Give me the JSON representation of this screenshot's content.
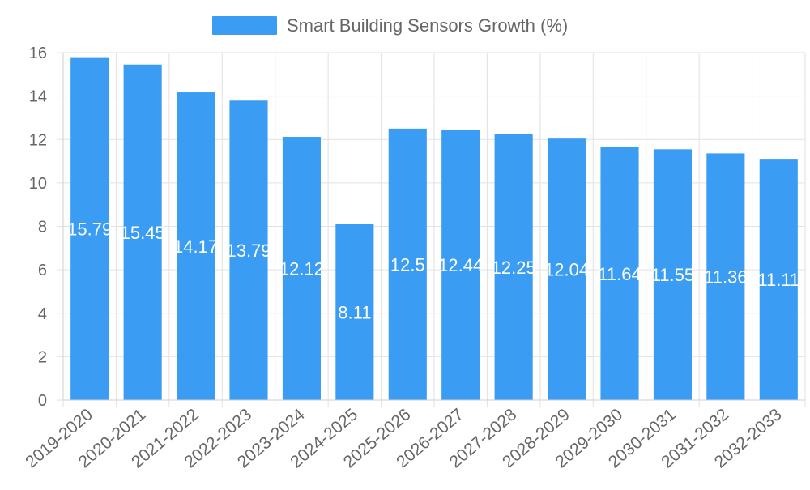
{
  "chart_data": {
    "type": "bar",
    "title": "",
    "xlabel": "",
    "ylabel": "",
    "legend_position": "top-center",
    "grid": true,
    "ylim": [
      0,
      16
    ],
    "y_ticks": [
      "0",
      "2",
      "4",
      "6",
      "8",
      "10",
      "12",
      "14",
      "16"
    ],
    "categories": [
      "2019-2020",
      "2020-2021",
      "2021-2022",
      "2022-2023",
      "2023-2024",
      "2024-2025",
      "2025-2026",
      "2026-2027",
      "2027-2028",
      "2028-2029",
      "2029-2030",
      "2030-2031",
      "2031-2032",
      "2032-2033"
    ],
    "series": [
      {
        "name": "Smart Building Sensors Growth (%)",
        "color": "#3a9cf2",
        "values": [
          15.79,
          15.45,
          14.17,
          13.79,
          12.12,
          8.11,
          12.5,
          12.44,
          12.25,
          12.04,
          11.64,
          11.55,
          11.36,
          11.11
        ],
        "labels": [
          "15.79",
          "15.45",
          "14.17",
          "13.79",
          "12.12",
          "8.11",
          "12.5",
          "12.44",
          "12.25",
          "12.04",
          "11.64",
          "11.55",
          "11.36",
          "11.11"
        ]
      }
    ]
  }
}
